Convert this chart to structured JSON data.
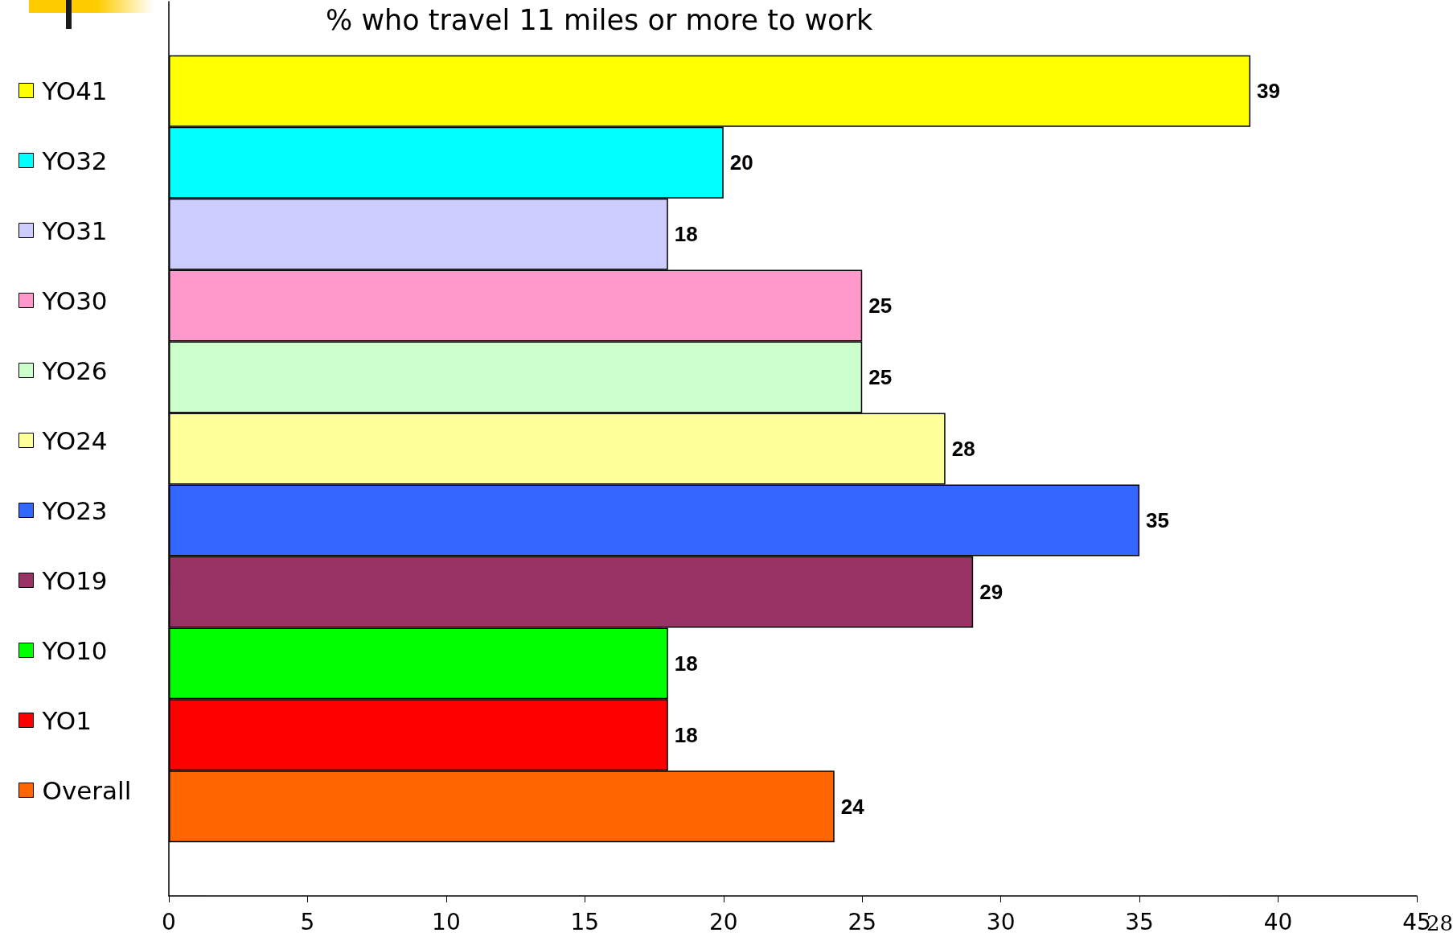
{
  "chart_data": {
    "type": "bar",
    "orientation": "horizontal",
    "title": "% who travel 11 miles or more to work",
    "categories": [
      null
    ],
    "data_labels": true,
    "legend": "left",
    "grid": false,
    "xlim": [
      0,
      45
    ],
    "xticks": [
      0,
      5,
      10,
      15,
      20,
      25,
      30,
      35,
      40,
      45
    ],
    "annotations": [
      "28"
    ],
    "series": [
      {
        "name": "YO41",
        "color": "#ffff00",
        "values": [
          39
        ]
      },
      {
        "name": "YO32",
        "color": "#00ffff",
        "values": [
          20
        ]
      },
      {
        "name": "YO31",
        "color": "#ccccff",
        "values": [
          18
        ]
      },
      {
        "name": "YO30",
        "color": "#ff99cc",
        "values": [
          25
        ]
      },
      {
        "name": "YO26",
        "color": "#ccffcc",
        "values": [
          25
        ]
      },
      {
        "name": "YO24",
        "color": "#ffff99",
        "values": [
          28
        ]
      },
      {
        "name": "YO23",
        "color": "#3366ff",
        "values": [
          35
        ]
      },
      {
        "name": "YO19",
        "color": "#993366",
        "values": [
          29
        ]
      },
      {
        "name": "YO10",
        "color": "#00ff00",
        "values": [
          18
        ]
      },
      {
        "name": "YO1",
        "color": "#ff0000",
        "values": [
          18
        ]
      },
      {
        "name": "Overall",
        "color": "#ff6600",
        "values": [
          24
        ]
      }
    ]
  }
}
